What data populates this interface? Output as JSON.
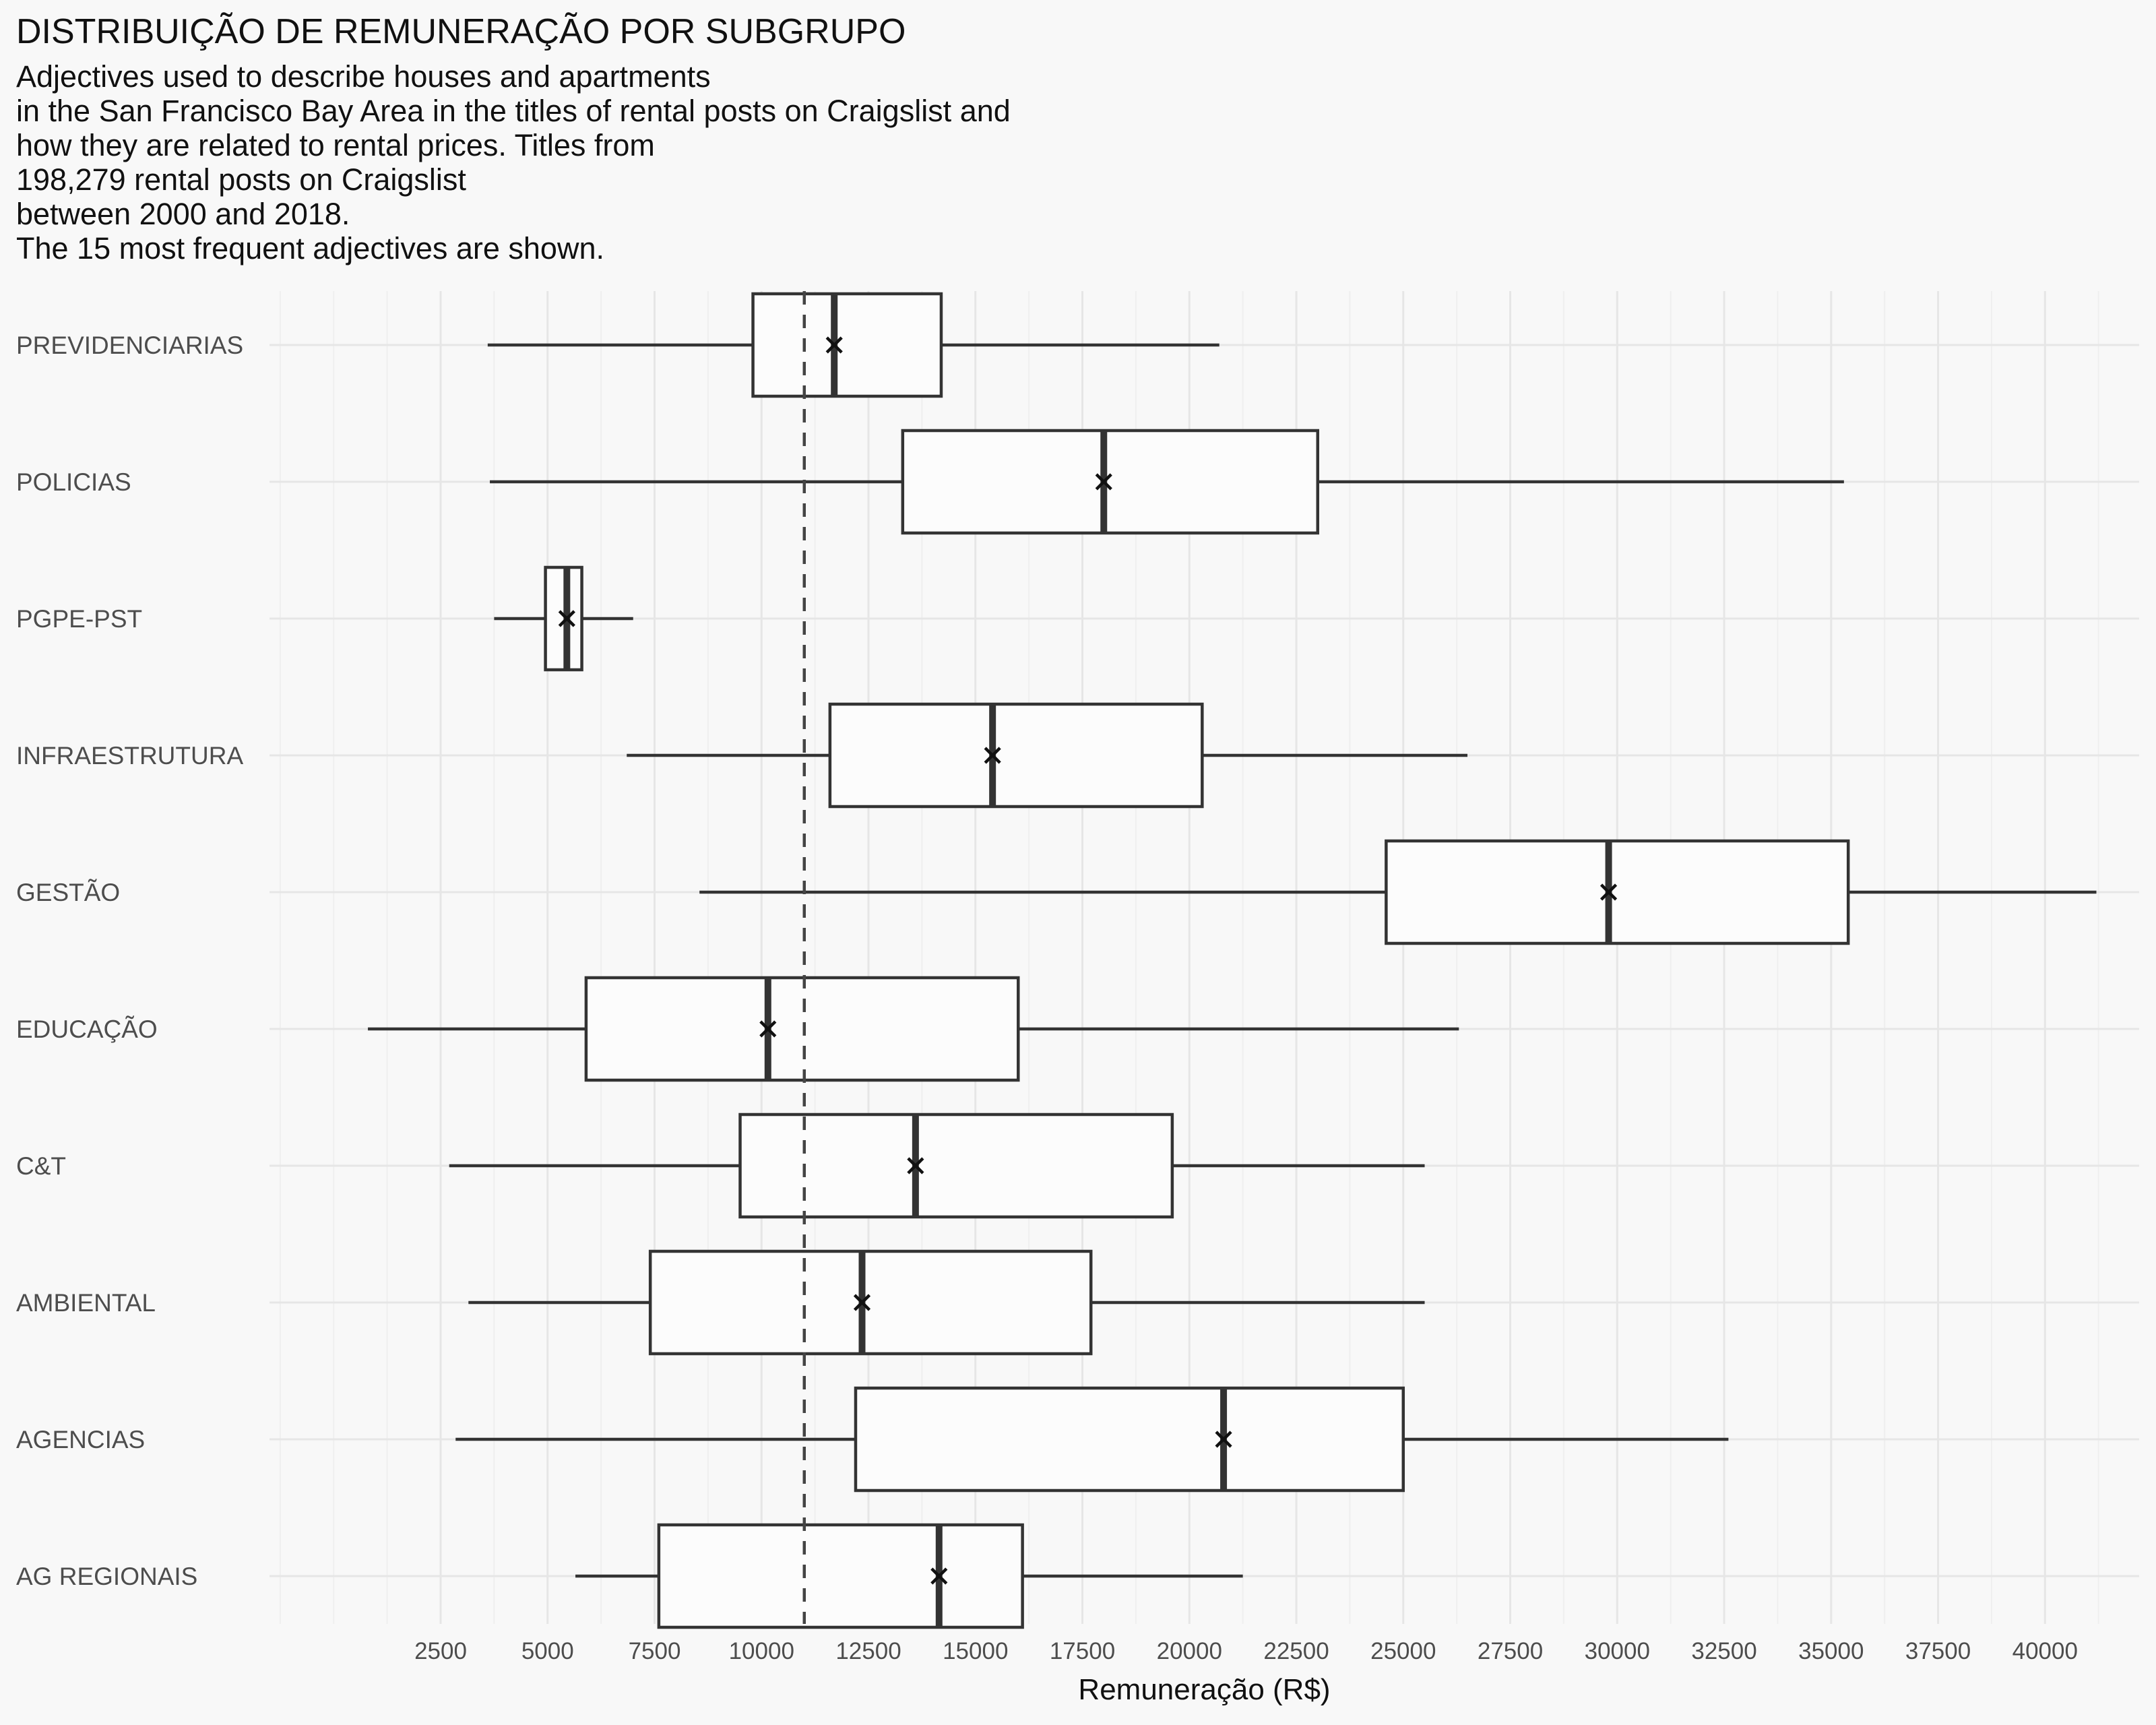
{
  "chart_data": {
    "type": "boxplot",
    "orientation": "horizontal",
    "title": "DISTRIBUIÇÃO DE REMUNERAÇÃO POR SUBGRUPO",
    "subtitle_lines": [
      "Adjectives used to describe houses and apartments",
      "in the San Francisco Bay Area in the titles of rental posts on Craigslist and",
      "how they are related to rental prices. Titles from",
      "198,279 rental posts on Craigslist",
      "between 2000 and 2018.",
      "The 15 most frequent adjectives are shown."
    ],
    "xlabel": "Remuneração (R$)",
    "ylabel": "",
    "xlim": [
      -1500,
      42200
    ],
    "x_ticks": [
      2500,
      5000,
      7500,
      10000,
      12500,
      15000,
      17500,
      20000,
      22500,
      25000,
      27500,
      30000,
      32500,
      35000,
      37500,
      40000
    ],
    "x_tick_labels": [
      "2500",
      "5000",
      "7500",
      "10000",
      "12500",
      "15000",
      "17500",
      "20000",
      "22500",
      "25000",
      "27500",
      "30000",
      "32500",
      "35000",
      "37500",
      "40000"
    ],
    "reference_line": 11000,
    "grid": true,
    "legend": "none",
    "categories": [
      "PREVIDENCIARIAS",
      "POLICIAS",
      "PGPE-PST",
      "INFRAESTRUTURA",
      "GESTÃO",
      "EDUCAÇÃO",
      "C&T",
      "AMBIENTAL",
      "AGENCIAS",
      "AG REGIONAIS"
    ],
    "boxes": [
      {
        "category": "PREVIDENCIARIAS",
        "min": 3600,
        "q1": 9800,
        "median": 11700,
        "q3": 14200,
        "max": 20700,
        "mean": 11700
      },
      {
        "category": "POLICIAS",
        "min": 3650,
        "q1": 13300,
        "median": 18000,
        "q3": 23000,
        "max": 35300,
        "mean": 18000
      },
      {
        "category": "PGPE-PST",
        "min": 3750,
        "q1": 4950,
        "median": 5450,
        "q3": 5800,
        "max": 7000,
        "mean": 5450
      },
      {
        "category": "INFRAESTRUTURA",
        "min": 6850,
        "q1": 11600,
        "median": 15400,
        "q3": 20300,
        "max": 26500,
        "mean": 15400
      },
      {
        "category": "GESTÃO",
        "min": 8550,
        "q1": 24600,
        "median": 29800,
        "q3": 35400,
        "max": 41200,
        "mean": 29800
      },
      {
        "category": "EDUCAÇÃO",
        "min": 800,
        "q1": 5900,
        "median": 10150,
        "q3": 16000,
        "max": 26300,
        "mean": 10150
      },
      {
        "category": "C&T",
        "min": 2700,
        "q1": 9500,
        "median": 13600,
        "q3": 19600,
        "max": 25500,
        "mean": 13600
      },
      {
        "category": "AMBIENTAL",
        "min": 3150,
        "q1": 7400,
        "median": 12350,
        "q3": 17700,
        "max": 25500,
        "mean": 12350
      },
      {
        "category": "AGENCIAS",
        "min": 2850,
        "q1": 12200,
        "median": 20800,
        "q3": 25000,
        "max": 32600,
        "mean": 20800
      },
      {
        "category": "AG REGIONAIS",
        "min": 5650,
        "q1": 7600,
        "median": 14150,
        "q3": 16100,
        "max": 21250,
        "mean": 14150
      }
    ]
  }
}
